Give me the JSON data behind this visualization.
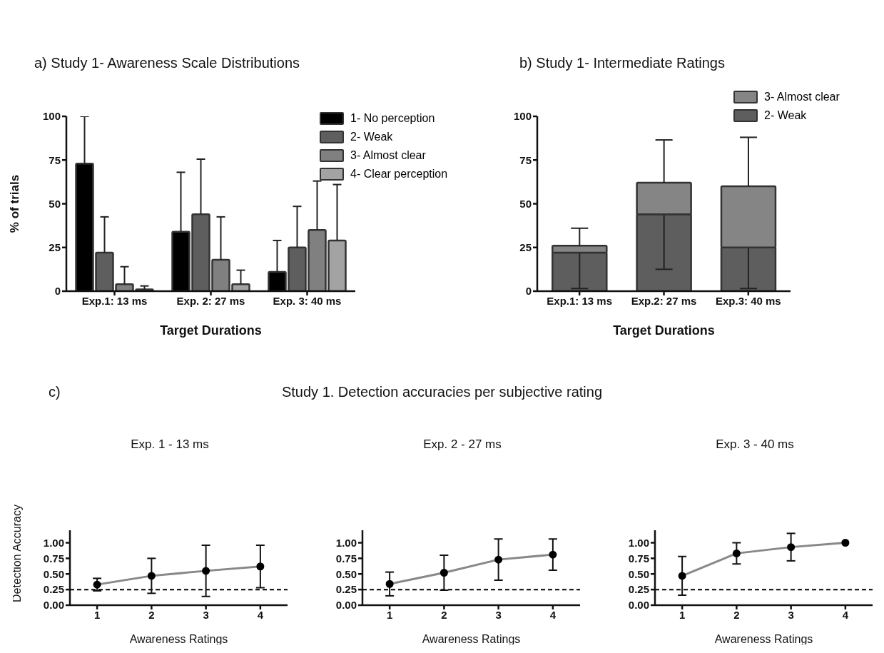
{
  "chart_data": [
    {
      "type": "bar",
      "title": "a) Study 1- Awareness Scale Distributions",
      "xlabel": "Target Durations",
      "ylabel": "% of trials",
      "categories": [
        "Exp.1: 13 ms",
        "Exp. 2: 27 ms",
        "Exp. 3: 40 ms"
      ],
      "ylim": [
        0,
        100
      ],
      "yticks": [
        0,
        25,
        50,
        75,
        100
      ],
      "legend": "top right",
      "series": [
        {
          "name": "1- No perception",
          "color": "#000000",
          "values": [
            73,
            34,
            11
          ],
          "errors": [
            [
              73,
              100
            ],
            [
              34,
              68
            ],
            [
              11,
              29
            ]
          ]
        },
        {
          "name": "2- Weak",
          "color": "#5e5e5e",
          "values": [
            22,
            44,
            25
          ],
          "errors": [
            [
              22,
              42.5
            ],
            [
              44,
              75.5
            ],
            [
              25,
              48.5
            ]
          ]
        },
        {
          "name": "3- Almost clear",
          "color": "#808080",
          "values": [
            4,
            18,
            35
          ],
          "errors": [
            [
              4,
              14
            ],
            [
              18,
              42.5
            ],
            [
              35,
              63
            ]
          ]
        },
        {
          "name": "4- Clear perception",
          "color": "#a3a3a3",
          "values": [
            1,
            4,
            29
          ],
          "errors": [
            [
              1,
              3
            ],
            [
              4,
              12
            ],
            [
              29,
              61
            ]
          ]
        }
      ]
    },
    {
      "type": "bar",
      "title": "b) Study 1- Intermediate Ratings",
      "xlabel": "Target Durations",
      "categories": [
        "Exp.1: 13 ms",
        "Exp.2: 27 ms",
        "Exp.3: 40 ms"
      ],
      "ylim": [
        0,
        100
      ],
      "yticks": [
        0,
        25,
        50,
        75,
        100
      ],
      "stacked": true,
      "legend": "top right",
      "series": [
        {
          "name": "2- Weak",
          "color": "#5e5e5e",
          "values": [
            22,
            44,
            25
          ],
          "errors": [
            [
              1.5,
              22
            ],
            [
              12.5,
              44
            ],
            [
              1.5,
              25
            ]
          ]
        },
        {
          "name": "3- Almost clear",
          "color": "#858585",
          "values": [
            4,
            18,
            35
          ],
          "errors": [
            [
              26,
              36
            ],
            [
              62,
              86.5
            ],
            [
              60,
              88
            ]
          ]
        }
      ]
    },
    {
      "type": "line",
      "title": "Exp. 1 - 13 ms",
      "xlabel": "Awareness Ratings",
      "ylabel": "Detection Accuracy",
      "annotations": [
        "c)",
        "Study 1. Detection accuracies per subjective rating"
      ],
      "x": [
        1,
        2,
        3,
        4
      ],
      "xlim": [
        0.5,
        4.5
      ],
      "xticks": [
        1,
        2,
        3,
        4
      ],
      "ylim": [
        0,
        1.2
      ],
      "yticks": [
        {
          "value": 0,
          "label": "0.00"
        },
        {
          "value": 0.25,
          "label": "0.25"
        },
        {
          "value": 0.5,
          "label": "0.50"
        },
        {
          "value": 0.75,
          "label": "0.75"
        },
        {
          "value": 1,
          "label": "1.00"
        }
      ],
      "marker": "circle",
      "line_style": "solid",
      "ref_lines": [
        {
          "axis": "y",
          "value": 0.25,
          "color": "#000000",
          "line_style": "dashed"
        }
      ],
      "series": [
        {
          "color": "#888888",
          "values": [
            0.33,
            0.47,
            0.55,
            0.62
          ],
          "errors": [
            [
              0.23,
              0.43
            ],
            [
              0.19,
              0.75
            ],
            [
              0.14,
              0.96
            ],
            [
              0.28,
              0.96
            ]
          ]
        }
      ]
    },
    {
      "type": "line",
      "title": "Exp. 2 - 27 ms",
      "xlabel": "Awareness Ratings",
      "x": [
        1,
        2,
        3,
        4
      ],
      "xlim": [
        0.5,
        4.5
      ],
      "xticks": [
        1,
        2,
        3,
        4
      ],
      "ylim": [
        0,
        1.2
      ],
      "yticks": [
        {
          "value": 0,
          "label": "0.00"
        },
        {
          "value": 0.25,
          "label": "0.25"
        },
        {
          "value": 0.5,
          "label": "0.50"
        },
        {
          "value": 0.75,
          "label": "0.75"
        },
        {
          "value": 1,
          "label": "1.00"
        }
      ],
      "marker": "circle",
      "line_style": "solid",
      "ref_lines": [
        {
          "axis": "y",
          "value": 0.25,
          "color": "#000000",
          "line_style": "dashed"
        }
      ],
      "series": [
        {
          "color": "#888888",
          "values": [
            0.34,
            0.52,
            0.73,
            0.81
          ],
          "errors": [
            [
              0.15,
              0.53
            ],
            [
              0.24,
              0.8
            ],
            [
              0.4,
              1.06
            ],
            [
              0.56,
              1.06
            ]
          ]
        }
      ]
    },
    {
      "type": "line",
      "title": "Exp. 3 - 40 ms",
      "xlabel": "Awareness Ratings",
      "x": [
        1,
        2,
        3,
        4
      ],
      "xlim": [
        0.5,
        4.5
      ],
      "xticks": [
        1,
        2,
        3,
        4
      ],
      "ylim": [
        0,
        1.2
      ],
      "yticks": [
        {
          "value": 0,
          "label": "0.00"
        },
        {
          "value": 0.25,
          "label": "0.25"
        },
        {
          "value": 0.5,
          "label": "0.50"
        },
        {
          "value": 0.75,
          "label": "0.75"
        },
        {
          "value": 1,
          "label": "1.00"
        }
      ],
      "marker": "circle",
      "line_style": "solid",
      "ref_lines": [
        {
          "axis": "y",
          "value": 0.25,
          "color": "#000000",
          "line_style": "dashed"
        }
      ],
      "series": [
        {
          "color": "#888888",
          "values": [
            0.47,
            0.83,
            0.93,
            1.0
          ],
          "errors": [
            [
              0.16,
              0.78
            ],
            [
              0.66,
              1.0
            ],
            [
              0.71,
              1.15
            ],
            null
          ]
        }
      ]
    }
  ]
}
